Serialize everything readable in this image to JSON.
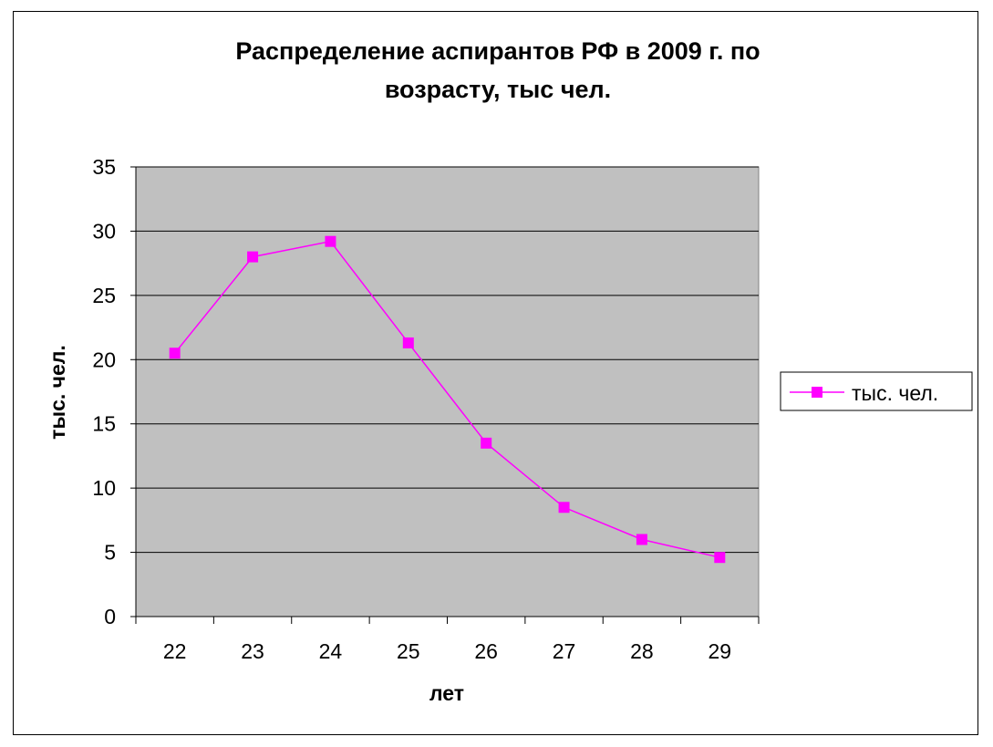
{
  "chart_data": {
    "type": "line",
    "title_lines": [
      "Распределение аспирантов РФ в 2009 г. по",
      "возрасту, тыс чел."
    ],
    "xlabel": "лет",
    "ylabel": "тыс. чел.",
    "categories": [
      "22",
      "23",
      "24",
      "25",
      "26",
      "27",
      "28",
      "29"
    ],
    "series": [
      {
        "name": "тыс. чел.",
        "values": [
          20.5,
          28.0,
          29.2,
          21.3,
          13.5,
          8.5,
          6.0,
          4.6
        ]
      }
    ],
    "ylim": [
      0,
      35
    ],
    "yticks": [
      0,
      5,
      10,
      15,
      20,
      25,
      30,
      35
    ],
    "grid": true,
    "legend": "right",
    "colors": {
      "plot_background": "#c0c0c0",
      "series": "#ff00ff",
      "gridline": "#000000"
    }
  }
}
